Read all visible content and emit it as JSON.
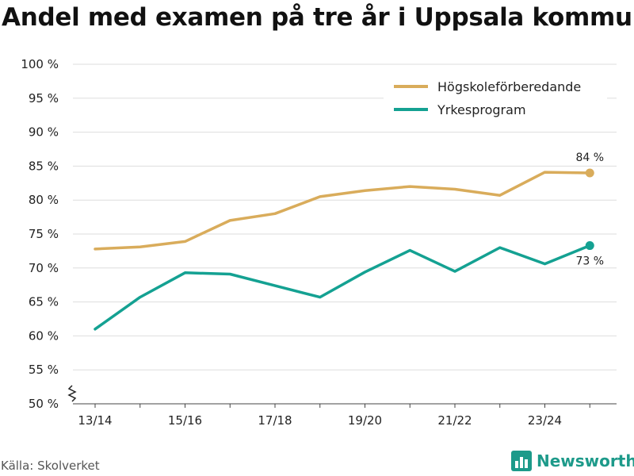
{
  "title": "Andel med examen på tre år i Uppsala kommun",
  "source": "Källa: Skolverket",
  "brand": {
    "name": "Newsworthy",
    "icon": "bar-chart-logo-icon",
    "color": "#1d9a8a"
  },
  "chart_data": {
    "type": "line",
    "title": "Andel med examen på tre år i Uppsala kommun",
    "xlabel": "",
    "ylabel": "",
    "x": [
      0,
      1,
      2,
      3,
      4,
      5,
      6,
      7,
      8,
      9,
      10,
      11
    ],
    "x_tick_labels": [
      {
        "x": 0,
        "label": "13/14"
      },
      {
        "x": 2,
        "label": "15/16"
      },
      {
        "x": 4,
        "label": "17/18"
      },
      {
        "x": 6,
        "label": "19/20"
      },
      {
        "x": 8,
        "label": "21/22"
      },
      {
        "x": 10,
        "label": "23/24"
      }
    ],
    "y_ticks": [
      50,
      55,
      60,
      65,
      70,
      75,
      80,
      85,
      90,
      95,
      100
    ],
    "y_tick_suffix": " %",
    "ylim": [
      50,
      100
    ],
    "grid": true,
    "axis_break": true,
    "legend_position": "top-right",
    "series": [
      {
        "name": "Högskoleförberedande",
        "color": "#d9ac5b",
        "values": [
          72.8,
          73.1,
          73.9,
          77.0,
          78.0,
          80.5,
          81.4,
          82.0,
          81.6,
          80.7,
          84.1,
          84.0
        ],
        "end_label": "84 %",
        "end_label_position": "above"
      },
      {
        "name": "Yrkesprogram",
        "color": "#14a192",
        "values": [
          61.0,
          65.7,
          69.3,
          69.1,
          67.4,
          65.7,
          69.4,
          72.6,
          69.5,
          73.0,
          70.6,
          73.3
        ],
        "end_label": "73 %",
        "end_label_position": "below"
      }
    ]
  }
}
